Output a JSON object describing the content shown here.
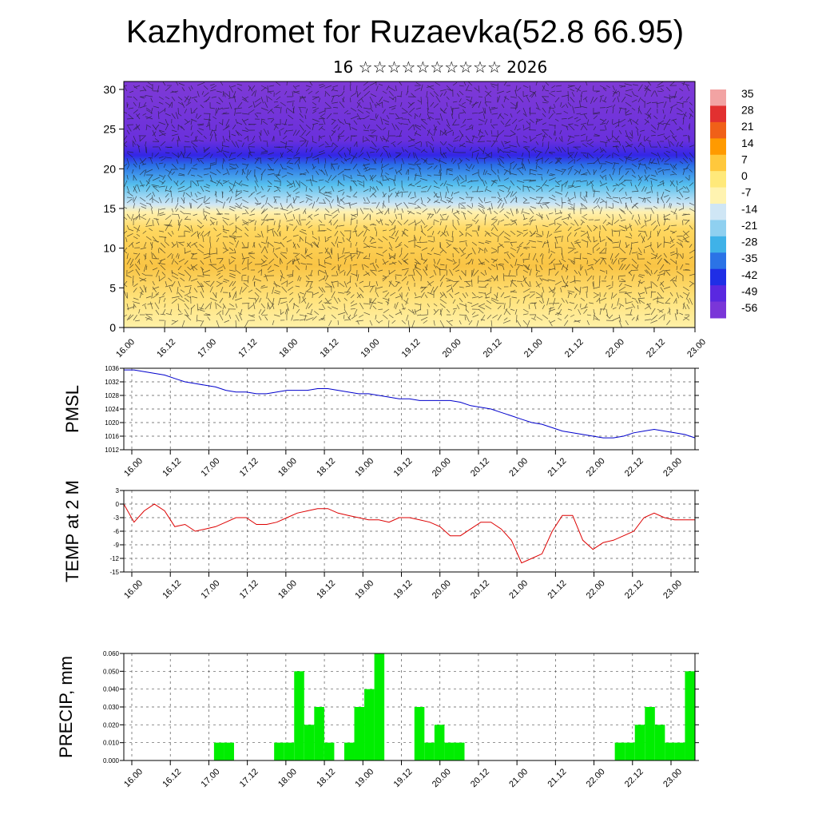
{
  "title": "Kazhydromet for Ruzaevka(52.8 66.95)",
  "subtitle": "16 ☆☆☆☆☆☆☆☆☆☆ 2026",
  "time_ticks": [
    "16.00",
    "16.12",
    "17.00",
    "17.12",
    "18.00",
    "18.12",
    "19.00",
    "19.12",
    "20.00",
    "20.12",
    "21.00",
    "21.12",
    "22.00",
    "22.12",
    "23.00"
  ],
  "chart_data": [
    {
      "type": "heatmap",
      "name": "cross-section",
      "description_text": "",
      "ylim": [
        0,
        31
      ],
      "yticks": [
        0,
        5,
        10,
        15,
        20,
        25,
        30
      ],
      "colorbar": {
        "labels": [
          "35",
          "28",
          "21",
          "14",
          "7",
          "0",
          "-7",
          "-14",
          "-21",
          "-28",
          "-35",
          "-42",
          "-49",
          "-56"
        ],
        "colors": [
          "#f2a3a3",
          "#e23030",
          "#f06018",
          "#ff9a00",
          "#ffc83c",
          "#ffe97a",
          "#fff3b0",
          "#cfe6f5",
          "#8fd0f0",
          "#3fb2e8",
          "#2b73e6",
          "#1f2ee6",
          "#5a28e0",
          "#7a36d8"
        ]
      }
    },
    {
      "type": "line",
      "name": "PMSL",
      "ylabel": "PMSL",
      "ylim": [
        1012,
        1036
      ],
      "yticks": [
        1012,
        1016,
        1020,
        1024,
        1028,
        1032,
        1036
      ],
      "color": "#0000cc",
      "x": [
        0,
        1,
        2,
        3,
        4,
        5,
        6,
        7,
        8,
        9,
        10,
        11,
        12,
        13,
        14,
        15,
        16,
        17,
        18,
        19,
        20,
        21,
        22,
        23,
        24,
        25,
        26,
        27,
        28,
        29,
        30,
        31,
        32,
        33,
        34,
        35,
        36,
        37,
        38,
        39,
        40,
        41,
        42,
        43,
        44,
        45,
        46,
        47,
        48,
        49,
        50,
        51,
        52,
        53,
        54,
        55,
        56
      ],
      "values": [
        1035.5,
        1035.5,
        1035,
        1034.5,
        1034,
        1033,
        1032,
        1031.5,
        1031,
        1030.5,
        1029.5,
        1029,
        1029,
        1028.5,
        1028.5,
        1029,
        1029.5,
        1029.5,
        1029.5,
        1030,
        1030,
        1029.5,
        1029,
        1028.5,
        1028.5,
        1028,
        1027.5,
        1027,
        1027,
        1026.5,
        1026.5,
        1026.5,
        1026.5,
        1026,
        1025,
        1024.5,
        1024,
        1023,
        1022,
        1021,
        1020,
        1019.5,
        1018.5,
        1017.5,
        1017,
        1016.5,
        1016,
        1015.5,
        1015.5,
        1016,
        1017,
        1017.5,
        1018,
        1017.5,
        1017,
        1016.5,
        1015.5
      ]
    },
    {
      "type": "line",
      "name": "TEMP at 2 M",
      "ylabel": "TEMP at 2 M",
      "ylim": [
        -15,
        3
      ],
      "yticks": [
        -15,
        -12,
        -9,
        -6,
        -3,
        0,
        3
      ],
      "color": "#dd0000",
      "x": [
        0,
        1,
        2,
        3,
        4,
        5,
        6,
        7,
        8,
        9,
        10,
        11,
        12,
        13,
        14,
        15,
        16,
        17,
        18,
        19,
        20,
        21,
        22,
        23,
        24,
        25,
        26,
        27,
        28,
        29,
        30,
        31,
        32,
        33,
        34,
        35,
        36,
        37,
        38,
        39,
        40,
        41,
        42,
        43,
        44,
        45,
        46,
        47,
        48,
        49,
        50,
        51,
        52,
        53,
        54,
        55,
        56
      ],
      "values": [
        0,
        -4,
        -1.5,
        0,
        -1.5,
        -5,
        -4.5,
        -6,
        -5.5,
        -5,
        -4,
        -3,
        -3,
        -4.5,
        -4.5,
        -4,
        -3,
        -2,
        -1.5,
        -1,
        -1,
        -2,
        -2.5,
        -3,
        -3.5,
        -3.5,
        -4,
        -3,
        -3,
        -3.5,
        -4,
        -5,
        -7,
        -7,
        -5.5,
        -4,
        -4,
        -5.5,
        -8,
        -13,
        -12,
        -11,
        -6,
        -2.5,
        -2.5,
        -8,
        -10,
        -8.5,
        -8,
        -7,
        -6,
        -3,
        -2,
        -3,
        -3.5,
        -3.5,
        -3.5
      ]
    },
    {
      "type": "bar",
      "name": "PRECIP, mm",
      "ylabel": "PRECIP, mm",
      "ylim": [
        0,
        0.06
      ],
      "yticks": [
        "0.000",
        "0.010",
        "0.020",
        "0.030",
        "0.040",
        "0.050",
        "0.060"
      ],
      "color": "#00ee00",
      "x": [
        0,
        1,
        2,
        3,
        4,
        5,
        6,
        7,
        8,
        9,
        10,
        11,
        12,
        13,
        14,
        15,
        16,
        17,
        18,
        19,
        20,
        21,
        22,
        23,
        24,
        25,
        26,
        27,
        28,
        29,
        30,
        31,
        32,
        33,
        34,
        35,
        36,
        37,
        38,
        39,
        40,
        41,
        42,
        43,
        44,
        45,
        46,
        47,
        48,
        49,
        50,
        51,
        52,
        53,
        54,
        55,
        56
      ],
      "values": [
        0,
        0,
        0,
        0,
        0,
        0,
        0,
        0,
        0,
        0.01,
        0.01,
        0,
        0,
        0,
        0,
        0.01,
        0.01,
        0.05,
        0.02,
        0.03,
        0.01,
        0,
        0.01,
        0.03,
        0.04,
        0.06,
        0,
        0,
        0,
        0.03,
        0.01,
        0.02,
        0.01,
        0.01,
        0,
        0,
        0,
        0,
        0,
        0,
        0,
        0,
        0,
        0,
        0,
        0,
        0,
        0,
        0,
        0.01,
        0.01,
        0.02,
        0.03,
        0.02,
        0.01,
        0.01,
        0.05
      ]
    }
  ]
}
